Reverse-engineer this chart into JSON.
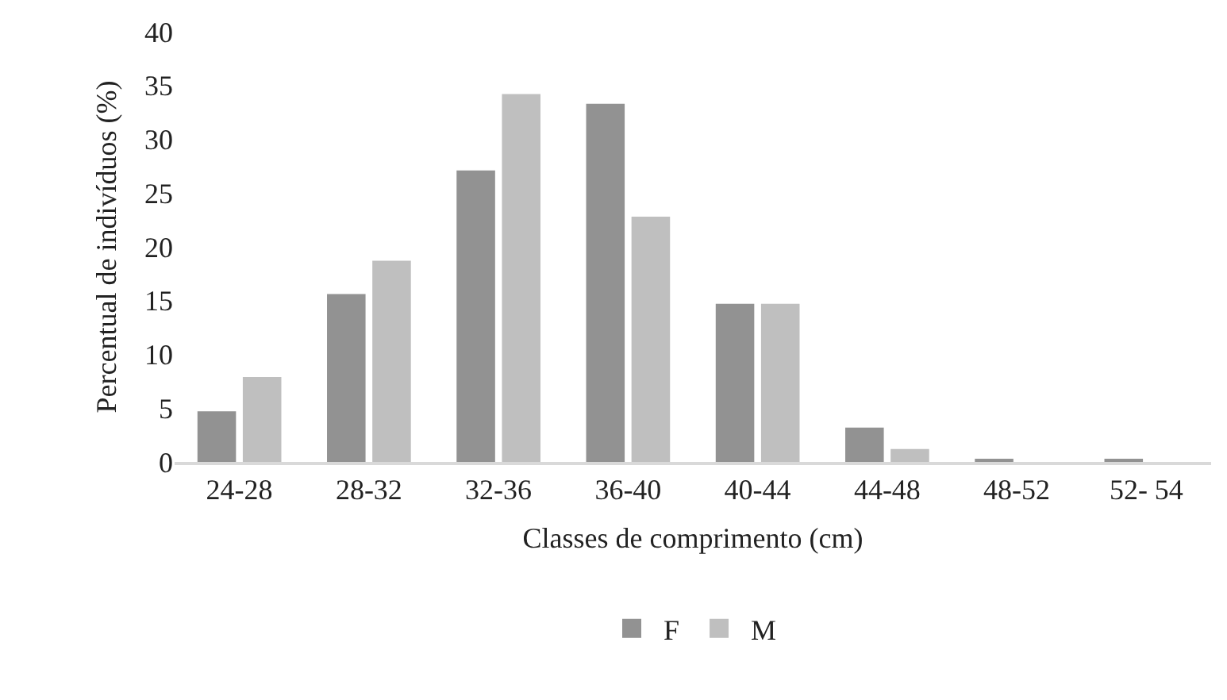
{
  "chart_data": {
    "type": "bar",
    "xlabel": "Classes de comprimento (cm)",
    "ylabel": "Percentual de indivíduos (%)",
    "categories": [
      "24-28",
      "28-32",
      "32-36",
      "36-40",
      "40-44",
      "44-48",
      "48-52",
      "52- 54"
    ],
    "series": [
      {
        "name": "F",
        "color": "#929292",
        "values": [
          4.7,
          15.6,
          27.1,
          33.3,
          14.7,
          3.2,
          0.3,
          0.3
        ]
      },
      {
        "name": "M",
        "color": "#bfbfbf",
        "values": [
          7.9,
          18.7,
          34.2,
          22.8,
          14.7,
          1.2,
          0,
          0
        ]
      }
    ],
    "ylim": [
      0,
      40
    ],
    "yticks": [
      0,
      5,
      10,
      15,
      20,
      25,
      30,
      35,
      40
    ],
    "grid": false,
    "legend": "bottom"
  }
}
